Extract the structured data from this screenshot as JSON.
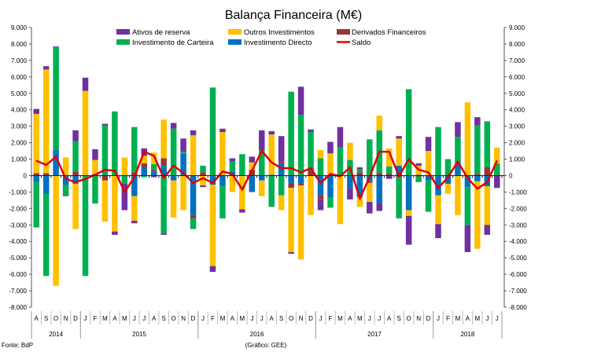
{
  "chart_data": {
    "type": "bar",
    "stacked": true,
    "title": "Balança Financeira (M€)",
    "ylim": [
      -8000,
      9000
    ],
    "ytick_step": 1000,
    "ytick_labels": [
      "9.000",
      "8.000",
      "7.000",
      "6.000",
      "5.000",
      "4.000",
      "3.000",
      "2.000",
      "1.000",
      "0",
      "-1.000",
      "-2.000",
      "-3.000",
      "-4.000",
      "-5.000",
      "-6.000",
      "-7.000",
      "-8.000"
    ],
    "months": [
      "A",
      "S",
      "O",
      "N",
      "D",
      "J",
      "F",
      "M",
      "A",
      "M",
      "J",
      "J",
      "A",
      "S",
      "O",
      "N",
      "D",
      "J",
      "F",
      "M",
      "A",
      "M",
      "J",
      "J",
      "A",
      "S",
      "O",
      "N",
      "D",
      "J",
      "F",
      "M",
      "A",
      "M",
      "J",
      "J",
      "A",
      "S",
      "O",
      "N",
      "D",
      "J",
      "F",
      "M",
      "A",
      "M",
      "J",
      "J"
    ],
    "years": [
      {
        "label": "2014",
        "months": 5
      },
      {
        "label": "2015",
        "months": 12
      },
      {
        "label": "2016",
        "months": 12
      },
      {
        "label": "2017",
        "months": 12
      },
      {
        "label": "2018",
        "months": 7
      }
    ],
    "series": [
      {
        "name": "Investimento Directo",
        "color": "#0070C0",
        "values": [
          -400,
          -1100,
          1550,
          -550,
          -500,
          0,
          0,
          50,
          0,
          0,
          -1250,
          500,
          250,
          600,
          -300,
          1350,
          -2400,
          0,
          -550,
          -650,
          250,
          0,
          -1000,
          -300,
          50,
          750,
          -450,
          -500,
          0,
          -1200,
          -1350,
          0,
          -800,
          -1300,
          -350,
          -1700,
          0,
          600,
          -2100,
          50,
          -300,
          -1200,
          -500,
          800,
          -700,
          -350,
          -650,
          0
        ]
      },
      {
        "name": "Derivados Financeiros",
        "color": "#953735",
        "values": [
          150,
          150,
          0,
          0,
          250,
          0,
          100,
          -300,
          0,
          0,
          200,
          250,
          100,
          450,
          0,
          0,
          -200,
          200,
          0,
          0,
          0,
          0,
          350,
          0,
          0,
          100,
          -300,
          -100,
          450,
          -250,
          0,
          0,
          0,
          200,
          -100,
          150,
          100,
          -100,
          0,
          -50,
          0,
          0,
          0,
          0,
          0,
          100,
          500,
          0
        ]
      },
      {
        "name": "Investimento de Carteira",
        "color": "#00B050",
        "values": [
          -2750,
          -5000,
          6250,
          -650,
          1850,
          -6100,
          -1700,
          3000,
          3900,
          -500,
          2750,
          -100,
          350,
          -3500,
          2850,
          100,
          -650,
          400,
          5350,
          -1950,
          600,
          1300,
          0,
          1550,
          -1900,
          -1200,
          5100,
          3700,
          2200,
          1050,
          -600,
          1700,
          950,
          200,
          2200,
          2600,
          450,
          -2500,
          5250,
          -350,
          -1900,
          2950,
          1000,
          1550,
          -2300,
          2950,
          2800,
          750
        ]
      },
      {
        "name": "Outros Investimentos",
        "color": "#FFC000",
        "values": [
          3600,
          6300,
          -6700,
          1100,
          -2750,
          5150,
          850,
          -2500,
          -3400,
          1100,
          -1500,
          450,
          700,
          2350,
          -2250,
          -2100,
          2450,
          -600,
          -4950,
          2650,
          -1000,
          -2050,
          450,
          -950,
          2450,
          -900,
          -3900,
          -4500,
          -2400,
          500,
          1350,
          -2950,
          1050,
          -600,
          -1150,
          900,
          1100,
          1650,
          -350,
          550,
          1500,
          -1750,
          -600,
          -2400,
          4450,
          -4100,
          -2350,
          950
        ]
      },
      {
        "name": "Ativos de reserva",
        "color": "#7030A0",
        "values": [
          300,
          200,
          50,
          -50,
          650,
          800,
          650,
          100,
          -200,
          -1600,
          -150,
          450,
          -100,
          -100,
          350,
          800,
          300,
          -100,
          -350,
          200,
          200,
          -200,
          350,
          1200,
          200,
          1550,
          -100,
          1700,
          150,
          -650,
          700,
          1250,
          -650,
          100,
          -700,
          -450,
          -200,
          150,
          -1750,
          150,
          850,
          -850,
          0,
          900,
          -1650,
          500,
          -600,
          -750
        ]
      }
    ],
    "line": {
      "name": "Saldo",
      "color": "#E00000",
      "values": [
        900,
        650,
        1150,
        -200,
        -400,
        -200,
        50,
        350,
        300,
        -1000,
        -100,
        1450,
        1200,
        -150,
        600,
        150,
        -450,
        -150,
        -450,
        250,
        100,
        -850,
        300,
        1500,
        800,
        450,
        450,
        200,
        450,
        -450,
        100,
        -50,
        500,
        -1400,
        -100,
        1450,
        1450,
        -50,
        1000,
        350,
        200,
        -750,
        -100,
        850,
        -150,
        -800,
        -400,
        900
      ]
    },
    "legend": {
      "placement": "top",
      "row1": [
        "Ativos de reserva",
        "Outros Investimentos",
        "Derivados Financeiros"
      ],
      "row2": [
        "Investimento de Carteira",
        "Investimento Directo",
        "Saldo"
      ]
    }
  },
  "footer": {
    "source": "Fonte: BdP",
    "credit": "(Gráfico: GEE)"
  }
}
